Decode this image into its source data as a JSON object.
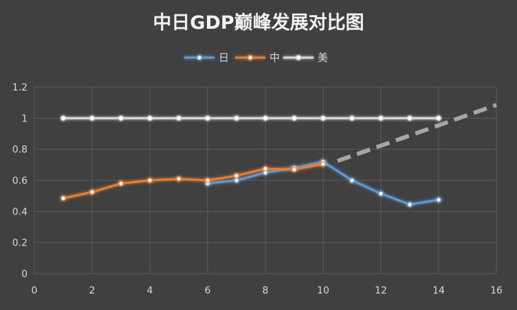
{
  "chart_data": {
    "type": "scatter",
    "title": "中日GDP巅峰发展对比图",
    "xlabel": "",
    "ylabel": "",
    "xlim": [
      0,
      16
    ],
    "ylim": [
      0,
      1.2
    ],
    "xticks": [
      0,
      2,
      4,
      6,
      8,
      10,
      12,
      14,
      16
    ],
    "yticks": [
      0,
      0.2,
      0.4,
      0.6,
      0.8,
      1,
      1.2
    ],
    "grid": true,
    "legend_position": "top",
    "series": [
      {
        "name": "日",
        "color": "#5b9bd5",
        "x": [
          6,
          7,
          8,
          9,
          10,
          11,
          12,
          13,
          14
        ],
        "y": [
          0.58,
          0.6,
          0.65,
          0.68,
          0.72,
          0.6,
          0.515,
          0.445,
          0.475
        ]
      },
      {
        "name": "中",
        "color": "#ed7d31",
        "x": [
          1,
          2,
          3,
          4,
          5,
          6,
          7,
          8,
          9,
          10
        ],
        "y": [
          0.485,
          0.525,
          0.58,
          0.6,
          0.61,
          0.6,
          0.63,
          0.675,
          0.67,
          0.705
        ]
      },
      {
        "name": "美",
        "color": "#d9d9d9",
        "x": [
          1,
          2,
          3,
          4,
          5,
          6,
          7,
          8,
          9,
          10,
          11,
          12,
          13,
          14
        ],
        "y": [
          1,
          1,
          1,
          1,
          1,
          1,
          1,
          1,
          1,
          1,
          1,
          1,
          1,
          1
        ]
      }
    ],
    "annotations": [
      {
        "type": "dashed-line",
        "color": "#a6a6a6",
        "x": [
          10.5,
          16
        ],
        "y": [
          0.725,
          1.085
        ]
      }
    ]
  }
}
